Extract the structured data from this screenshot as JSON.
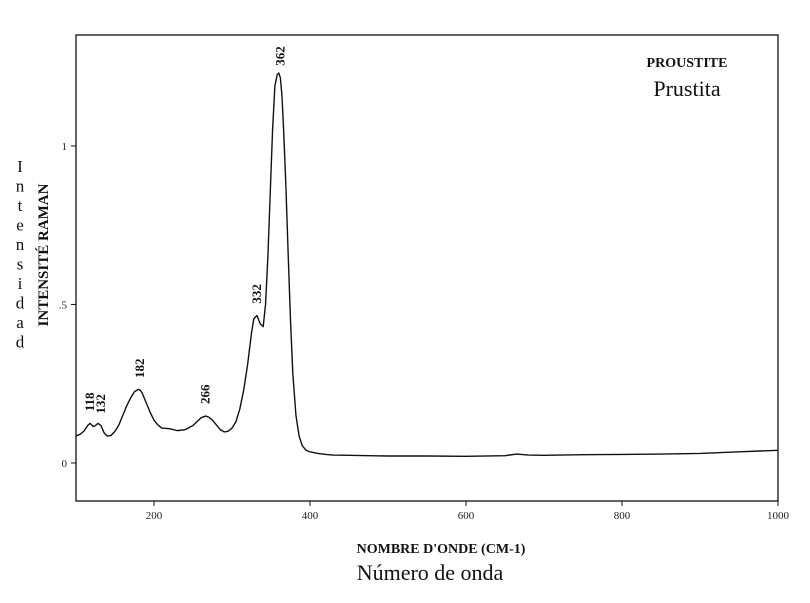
{
  "chart_data": {
    "type": "line",
    "title": "PROUSTITE",
    "subtitle": "Prustita",
    "xlabel": "NOMBRE D'ONDE (CM-1)",
    "xlabel_secondary": "Número de onda",
    "ylabel": "INTENSITÉ RAMAN",
    "ylabel_secondary": "Intensidad",
    "xlim": [
      100,
      1000
    ],
    "ylim": [
      -0.12,
      1.35
    ],
    "x_ticks": [
      200,
      400,
      600,
      800,
      1000
    ],
    "x_tick_labels": [
      "200",
      "400",
      "600",
      "800",
      "1000"
    ],
    "y_ticks": [
      0,
      0.5,
      1
    ],
    "y_tick_labels": [
      "0",
      ".5",
      "1"
    ],
    "grid": false,
    "line_color": "#111111",
    "peak_labels": [
      {
        "x": 118,
        "label": "118"
      },
      {
        "x": 132,
        "label": "132"
      },
      {
        "x": 182,
        "label": "182"
      },
      {
        "x": 266,
        "label": "266"
      },
      {
        "x": 332,
        "label": "332"
      },
      {
        "x": 362,
        "label": "362"
      }
    ],
    "series": [
      {
        "x": [
          100,
          105,
          110,
          115,
          118,
          122,
          125,
          128,
          132,
          136,
          140,
          145,
          150,
          155,
          160,
          165,
          170,
          175,
          180,
          182,
          185,
          190,
          195,
          200,
          205,
          210,
          220,
          230,
          240,
          250,
          255,
          260,
          266,
          270,
          275,
          280,
          285,
          290,
          295,
          300,
          305,
          310,
          315,
          320,
          325,
          328,
          332,
          336,
          340,
          343,
          346,
          349,
          352,
          355,
          358,
          360,
          362,
          364,
          366,
          369,
          372,
          375,
          378,
          382,
          386,
          390,
          395,
          400,
          410,
          420,
          430,
          450,
          500,
          550,
          600,
          650,
          665,
          680,
          700,
          750,
          800,
          850,
          900,
          950,
          1000
        ],
        "y": [
          0.085,
          0.09,
          0.1,
          0.118,
          0.125,
          0.115,
          0.118,
          0.125,
          0.118,
          0.095,
          0.085,
          0.087,
          0.1,
          0.12,
          0.15,
          0.18,
          0.205,
          0.225,
          0.232,
          0.23,
          0.22,
          0.19,
          0.16,
          0.135,
          0.12,
          0.11,
          0.108,
          0.102,
          0.105,
          0.118,
          0.13,
          0.142,
          0.148,
          0.145,
          0.135,
          0.12,
          0.105,
          0.098,
          0.1,
          0.11,
          0.13,
          0.17,
          0.23,
          0.31,
          0.41,
          0.455,
          0.465,
          0.44,
          0.43,
          0.5,
          0.65,
          0.85,
          1.05,
          1.19,
          1.225,
          1.23,
          1.215,
          1.16,
          1.06,
          0.88,
          0.66,
          0.45,
          0.28,
          0.15,
          0.085,
          0.055,
          0.04,
          0.035,
          0.03,
          0.027,
          0.025,
          0.024,
          0.022,
          0.022,
          0.021,
          0.023,
          0.028,
          0.025,
          0.024,
          0.026,
          0.027,
          0.028,
          0.03,
          0.035,
          0.04
        ]
      }
    ]
  }
}
